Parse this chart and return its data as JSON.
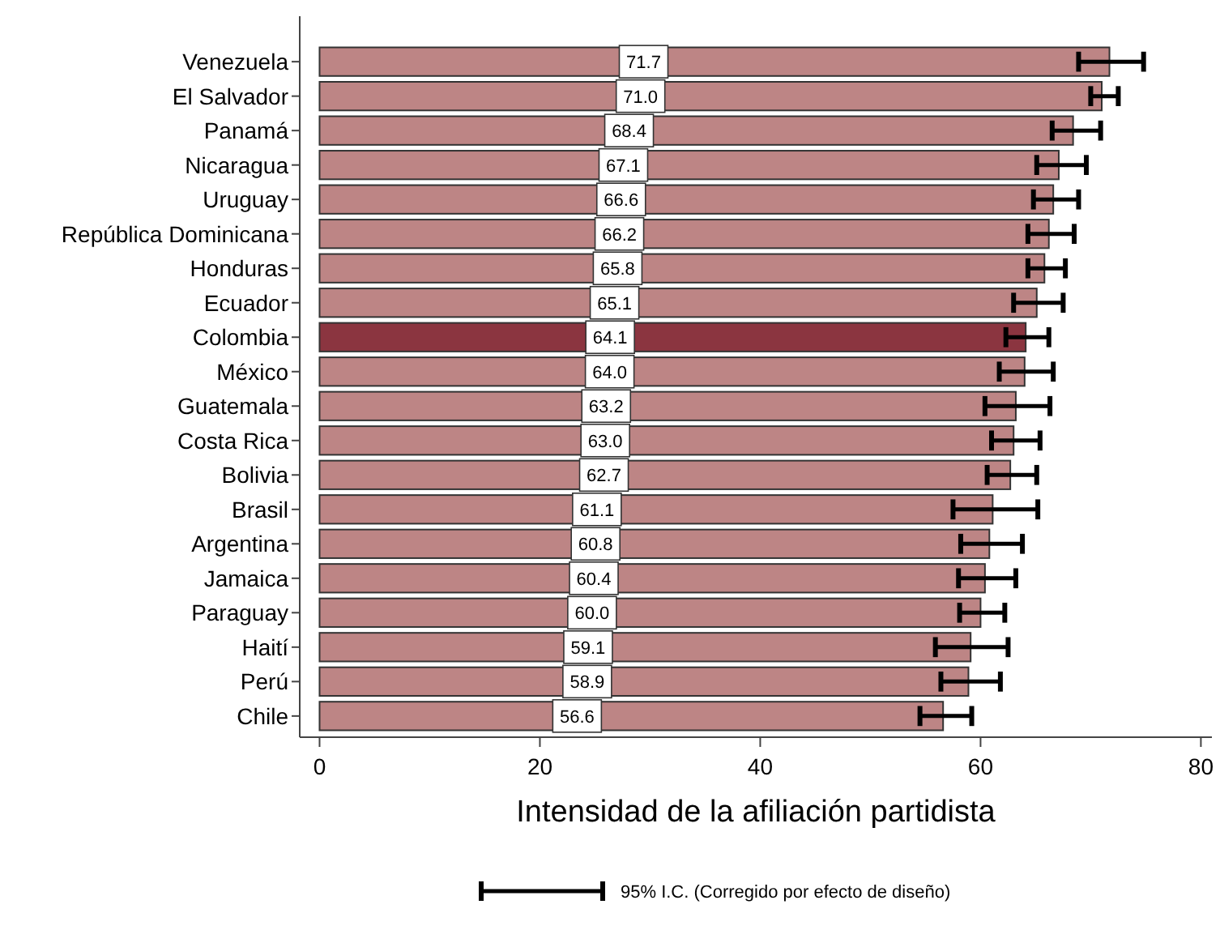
{
  "chart_data": {
    "type": "bar",
    "orientation": "horizontal",
    "categories": [
      "Venezuela",
      "El Salvador",
      "Panamá",
      "Nicaragua",
      "Uruguay",
      "República Dominicana",
      "Honduras",
      "Ecuador",
      "Colombia",
      "México",
      "Guatemala",
      "Costa Rica",
      "Bolivia",
      "Brasil",
      "Argentina",
      "Jamaica",
      "Paraguay",
      "Haití",
      "Perú",
      "Chile"
    ],
    "values": [
      71.7,
      71.0,
      68.4,
      67.1,
      66.6,
      66.2,
      65.8,
      65.1,
      64.1,
      64.0,
      63.2,
      63.0,
      62.7,
      61.1,
      60.8,
      60.4,
      60.0,
      59.1,
      58.9,
      56.6
    ],
    "errors": [
      [
        68.9,
        74.8
      ],
      [
        70.0,
        72.5
      ],
      [
        66.5,
        70.9
      ],
      [
        65.1,
        69.6
      ],
      [
        64.8,
        68.9
      ],
      [
        64.3,
        68.5
      ],
      [
        64.3,
        67.7
      ],
      [
        63.0,
        67.5
      ],
      [
        62.3,
        66.2
      ],
      [
        61.7,
        66.6
      ],
      [
        60.4,
        66.3
      ],
      [
        61.0,
        65.4
      ],
      [
        60.6,
        65.1
      ],
      [
        57.5,
        65.2
      ],
      [
        58.2,
        63.8
      ],
      [
        58.0,
        63.2
      ],
      [
        58.1,
        62.2
      ],
      [
        55.9,
        62.5
      ],
      [
        56.4,
        61.8
      ],
      [
        54.5,
        59.2
      ]
    ],
    "colors": [
      "#bd8585",
      "#bd8585",
      "#bd8585",
      "#bd8585",
      "#bd8585",
      "#bd8585",
      "#bd8585",
      "#bd8585",
      "#8b3540",
      "#bd8585",
      "#bd8585",
      "#bd8585",
      "#bd8585",
      "#bd8585",
      "#bd8585",
      "#bd8585",
      "#bd8585",
      "#bd8585",
      "#bd8585",
      "#bd8585"
    ],
    "value_labels": [
      "71.7",
      "71.0",
      "68.4",
      "67.1",
      "66.6",
      "66.2",
      "65.8",
      "65.1",
      "64.1",
      "64.0",
      "63.2",
      "63.0",
      "62.7",
      "61.1",
      "60.8",
      "60.4",
      "60.0",
      "59.1",
      "58.9",
      "56.6"
    ],
    "xlim": [
      -1.8,
      81
    ],
    "xticks": [
      0,
      20,
      40,
      60,
      80
    ],
    "xlabel": "Intensidad de la afiliación partidista",
    "annotations": [
      "95% I.C. (Corregido por efecto de diseño)"
    ]
  }
}
